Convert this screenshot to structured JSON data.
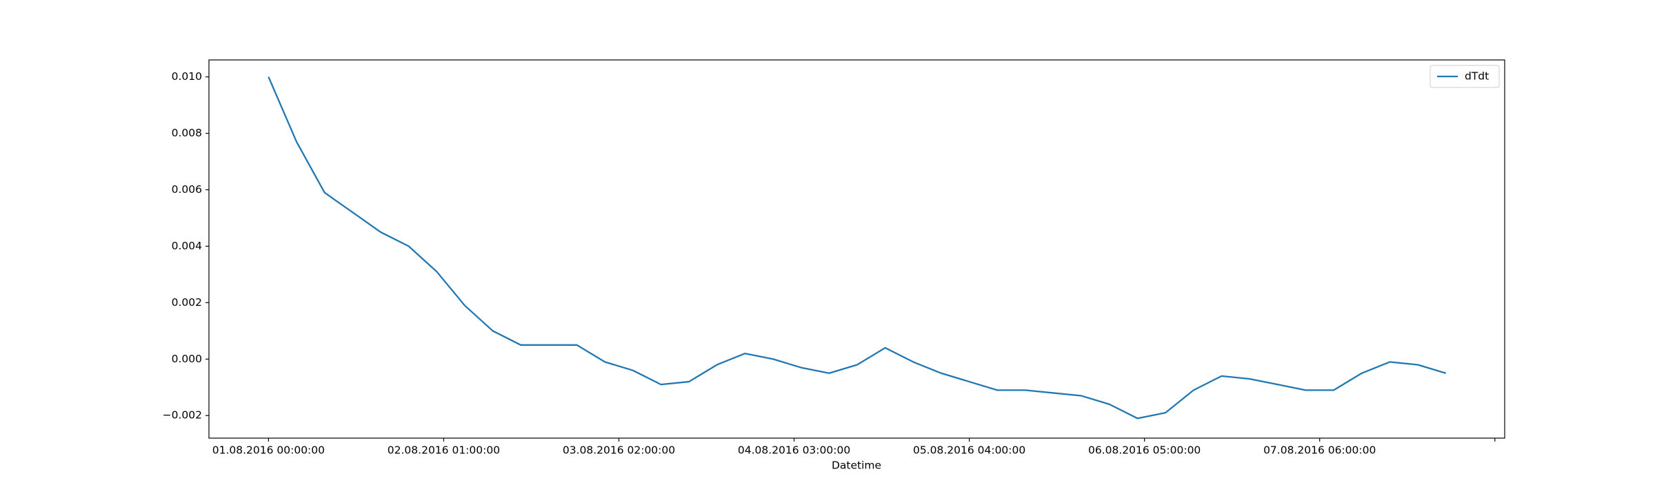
{
  "chart_data": {
    "type": "line",
    "x_label": "Datetime",
    "x": [
      0,
      4,
      8,
      12,
      16,
      20,
      24,
      28,
      32,
      36,
      40,
      44,
      48,
      52,
      56,
      60,
      64,
      68,
      72,
      76,
      80,
      84,
      88,
      92,
      96,
      100,
      104,
      108,
      112,
      116,
      120,
      124,
      128,
      132,
      136,
      140,
      144,
      148,
      152,
      156,
      160,
      164,
      168
    ],
    "series": [
      {
        "name": "dTdt",
        "color": "#1f77b4",
        "values": [
          0.01,
          0.0077,
          0.0059,
          0.0052,
          0.0045,
          0.004,
          0.0031,
          0.0019,
          0.001,
          0.0005,
          0.0005,
          0.0005,
          -0.0001,
          -0.0004,
          -0.0009,
          -0.0008,
          -0.0002,
          0.0002,
          0.0,
          -0.0003,
          -0.0005,
          -0.0002,
          0.0004,
          -0.0001,
          -0.0005,
          -0.0008,
          -0.0011,
          -0.0011,
          -0.0012,
          -0.0013,
          -0.0016,
          -0.0021,
          -0.0019,
          -0.0011,
          -0.0006,
          -0.0007,
          -0.0009,
          -0.0011,
          -0.0011,
          -0.0005,
          -0.0001,
          -0.0002,
          -0.0005
        ]
      }
    ],
    "xlim": [
      -8.5,
      176.4
    ],
    "xticks": [
      {
        "value": 0,
        "label": "01.08.2016 00:00:00"
      },
      {
        "value": 25,
        "label": "02.08.2016 01:00:00"
      },
      {
        "value": 50,
        "label": "03.08.2016 02:00:00"
      },
      {
        "value": 75,
        "label": "04.08.2016 03:00:00"
      },
      {
        "value": 100,
        "label": "05.08.2016 04:00:00"
      },
      {
        "value": 125,
        "label": "06.08.2016 05:00:00"
      },
      {
        "value": 150,
        "label": "07.08.2016 06:00:00"
      },
      {
        "value": 175,
        "label": null
      }
    ],
    "ylim": [
      -0.0028,
      0.0106
    ],
    "yticks": [
      {
        "value": -0.002,
        "label": "−0.002"
      },
      {
        "value": 0,
        "label": "0.000"
      },
      {
        "value": 0.002,
        "label": "0.002"
      },
      {
        "value": 0.004,
        "label": "0.004"
      },
      {
        "value": 0.006,
        "label": "0.006"
      },
      {
        "value": 0.008,
        "label": "0.008"
      },
      {
        "value": 0.01,
        "label": "0.010"
      }
    ],
    "legend": "upper right"
  }
}
